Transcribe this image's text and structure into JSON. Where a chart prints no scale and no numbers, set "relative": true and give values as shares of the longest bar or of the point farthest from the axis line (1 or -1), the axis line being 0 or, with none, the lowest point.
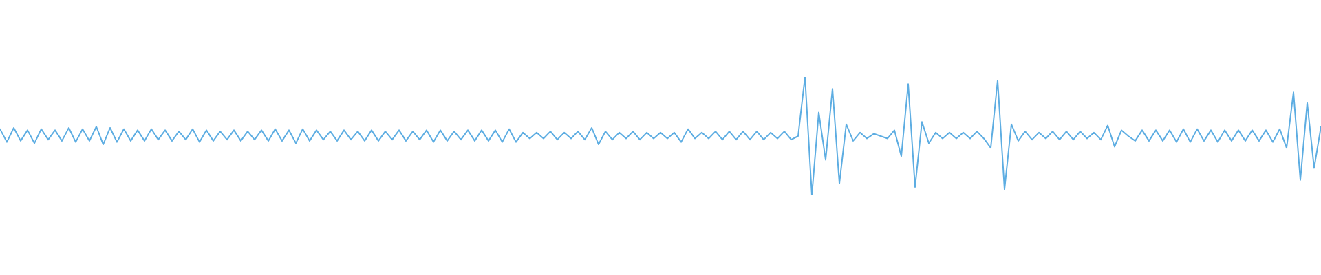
{
  "chart_data": {
    "type": "line",
    "relative": true,
    "color": "#5dade2",
    "categories": [
      null,
      null,
      null,
      null,
      null,
      null,
      null,
      null,
      null,
      null,
      null,
      null,
      null,
      null,
      null,
      null,
      null,
      null,
      null,
      null,
      null,
      null,
      null,
      null,
      null,
      null,
      null,
      null,
      null,
      null,
      null,
      null,
      null,
      null,
      null,
      null,
      null,
      null,
      null,
      null,
      null,
      null,
      null,
      null,
      null,
      null,
      null,
      null,
      null,
      null,
      null,
      null,
      null,
      null,
      null,
      null,
      null,
      null,
      null,
      null,
      null,
      null,
      null,
      null,
      null,
      null,
      null,
      null,
      null,
      null,
      null,
      null,
      null,
      null,
      null,
      null,
      null,
      null,
      null,
      null,
      null,
      null,
      null,
      null,
      null,
      null,
      null,
      null,
      null,
      null,
      null,
      null,
      null,
      null,
      null,
      null,
      null,
      null,
      null,
      null,
      null,
      null,
      null,
      null,
      null,
      null,
      null,
      null,
      null,
      null,
      null,
      null,
      null,
      null,
      null,
      null,
      null,
      null,
      null,
      null,
      null,
      null,
      null,
      null,
      null,
      null,
      null,
      null,
      null,
      null,
      null,
      null,
      null,
      null,
      null,
      null,
      null,
      null,
      null,
      null,
      null,
      null,
      null,
      null,
      null,
      null,
      null,
      null,
      null,
      null,
      null,
      null,
      null,
      null,
      null,
      null,
      null,
      null,
      null,
      null,
      null,
      null,
      null,
      null,
      null,
      null,
      null,
      null,
      null,
      null,
      null,
      null,
      null,
      null,
      null,
      null,
      null,
      null,
      null,
      null,
      null,
      null,
      null,
      null,
      null,
      null,
      null,
      null,
      null,
      null,
      null,
      null,
      null
    ],
    "values": [
      0.56,
      0.45,
      0.57,
      0.46,
      0.55,
      0.44,
      0.56,
      0.47,
      0.55,
      0.46,
      0.57,
      0.45,
      0.56,
      0.46,
      0.58,
      0.43,
      0.57,
      0.45,
      0.56,
      0.46,
      0.55,
      0.46,
      0.56,
      0.47,
      0.55,
      0.46,
      0.54,
      0.47,
      0.56,
      0.45,
      0.55,
      0.46,
      0.54,
      0.47,
      0.55,
      0.46,
      0.54,
      0.47,
      0.55,
      0.46,
      0.56,
      0.46,
      0.55,
      0.44,
      0.56,
      0.46,
      0.55,
      0.47,
      0.54,
      0.46,
      0.55,
      0.47,
      0.54,
      0.46,
      0.55,
      0.46,
      0.54,
      0.47,
      0.55,
      0.46,
      0.54,
      0.47,
      0.55,
      0.45,
      0.55,
      0.46,
      0.54,
      0.47,
      0.55,
      0.46,
      0.55,
      0.46,
      0.55,
      0.45,
      0.56,
      0.45,
      0.53,
      0.48,
      0.53,
      0.48,
      0.54,
      0.47,
      0.53,
      0.48,
      0.54,
      0.47,
      0.57,
      0.43,
      0.54,
      0.47,
      0.53,
      0.48,
      0.54,
      0.47,
      0.53,
      0.48,
      0.53,
      0.48,
      0.53,
      0.45,
      0.56,
      0.48,
      0.53,
      0.48,
      0.54,
      0.47,
      0.54,
      0.47,
      0.54,
      0.47,
      0.54,
      0.47,
      0.53,
      0.48,
      0.54,
      0.47,
      0.5,
      1.0,
      0.0,
      0.7,
      0.3,
      0.9,
      0.1,
      0.6,
      0.46,
      0.53,
      0.48,
      0.52,
      0.5,
      0.48,
      0.55,
      0.33,
      0.94,
      0.07,
      0.62,
      0.44,
      0.53,
      0.48,
      0.53,
      0.48,
      0.53,
      0.48,
      0.54,
      0.48,
      0.4,
      0.97,
      0.05,
      0.6,
      0.46,
      0.54,
      0.47,
      0.53,
      0.48,
      0.54,
      0.47,
      0.54,
      0.47,
      0.54,
      0.48,
      0.53,
      0.47,
      0.59,
      0.41,
      0.55,
      0.5,
      0.46,
      0.55,
      0.46,
      0.55,
      0.46,
      0.55,
      0.45,
      0.56,
      0.45,
      0.56,
      0.46,
      0.55,
      0.45,
      0.55,
      0.46,
      0.55,
      0.46,
      0.55,
      0.46,
      0.55,
      0.45,
      0.56,
      0.4,
      0.87,
      0.13,
      0.78,
      0.23,
      0.58
    ]
  }
}
